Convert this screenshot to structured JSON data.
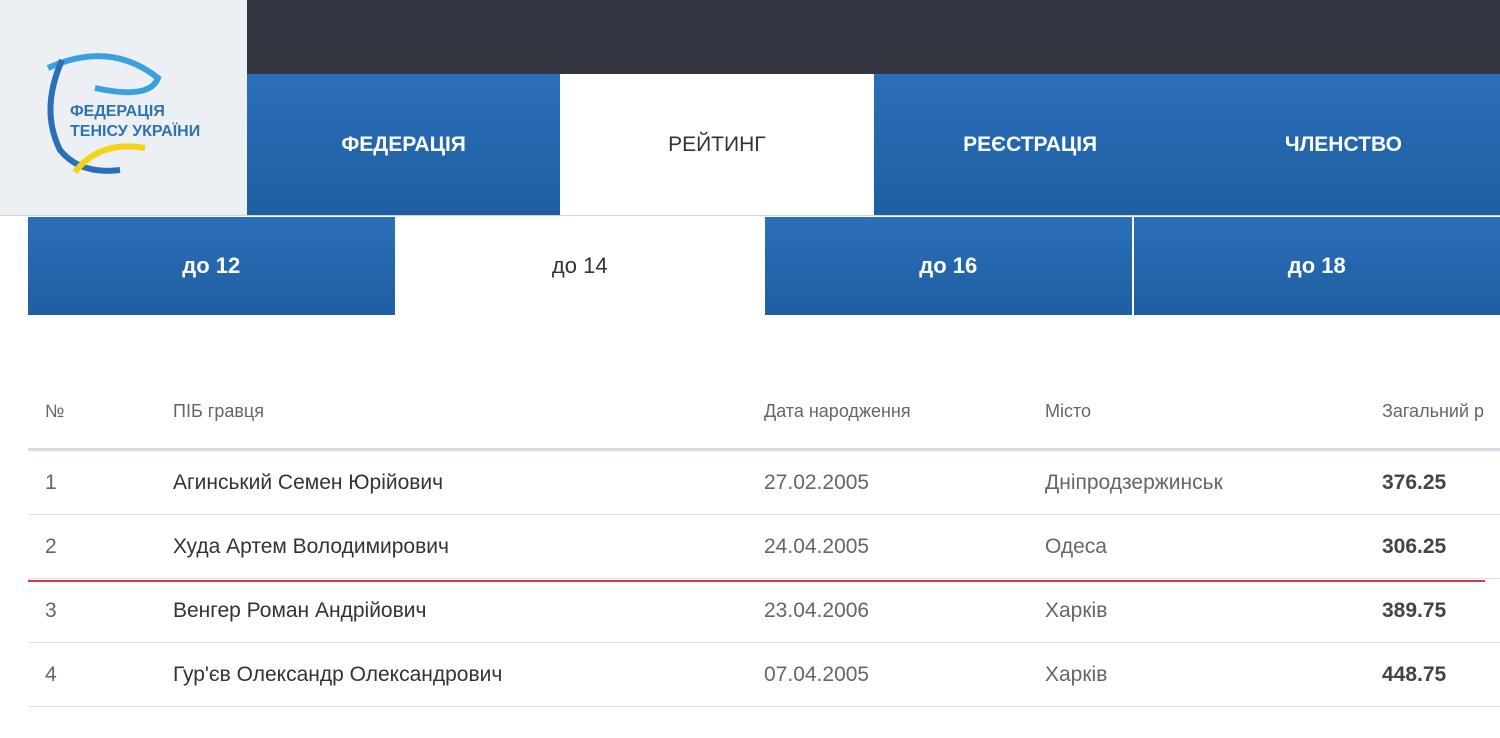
{
  "logo": {
    "line1": "ФЕДЕРАЦІЯ",
    "line2": "ТЕНІСУ УКРАЇНИ"
  },
  "main_nav": [
    {
      "label": "ФЕДЕРАЦІЯ",
      "active": false
    },
    {
      "label": "РЕЙТИНГ",
      "active": true
    },
    {
      "label": "РЕЄСТРАЦІЯ",
      "active": false
    },
    {
      "label": "ЧЛЕНСТВО",
      "active": false
    }
  ],
  "sub_nav": [
    {
      "label": "до 12",
      "active": false
    },
    {
      "label": "до 14",
      "active": true
    },
    {
      "label": "до 16",
      "active": false
    },
    {
      "label": "до 18",
      "active": false
    }
  ],
  "table": {
    "headers": [
      "№",
      "ПІБ гравця",
      "Дата народження",
      "Місто",
      "Загальний р"
    ],
    "rows": [
      [
        "1",
        "Агинський Семен Юрійович",
        "27.02.2005",
        "Дніпродзержинськ",
        "376.25"
      ],
      [
        "2",
        "Худа Артем Володимирович",
        "24.04.2005",
        "Одеса",
        "306.25"
      ],
      [
        "3",
        "Венгер Роман Андрійович",
        "23.04.2006",
        "Харків",
        "389.75"
      ],
      [
        "4",
        "Гур'єв Олександр Олександрович",
        "07.04.2005",
        "Харків",
        "448.75"
      ]
    ]
  },
  "colors": {
    "nav_blue": "#2a6fb8",
    "topbar": "#333640",
    "annotation_red": "#e0334f",
    "logo_yellow": "#f5d312"
  }
}
